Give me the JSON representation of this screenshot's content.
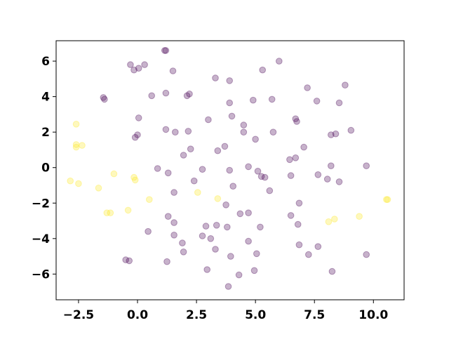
{
  "chart_data": {
    "type": "scatter",
    "title": "",
    "xlabel": "",
    "ylabel": "",
    "xlim": [
      -3.45,
      11.3
    ],
    "ylim": [
      -7.45,
      7.15
    ],
    "grid": false,
    "xticks": [
      -2.5,
      0.0,
      2.5,
      5.0,
      7.5,
      10.0
    ],
    "xtick_labels": [
      "−2.5",
      "0.0",
      "2.5",
      "5.0",
      "7.5",
      "10.0"
    ],
    "yticks": [
      -6,
      -4,
      -2,
      0,
      2,
      4,
      6
    ],
    "ytick_labels": [
      "−6",
      "−4",
      "−2",
      "0",
      "2",
      "4",
      "6"
    ],
    "colors": {
      "class_0": "#440154",
      "class_1": "#fde725"
    },
    "point_alpha": 0.3,
    "series": [
      {
        "color": "#440154",
        "points": [
          [
            1.2,
            6.6
          ],
          [
            1.15,
            6.6
          ],
          [
            6.0,
            6.0
          ],
          [
            -0.3,
            5.8
          ],
          [
            0.3,
            5.8
          ],
          [
            0.05,
            5.6
          ],
          [
            -0.15,
            5.5
          ],
          [
            1.5,
            5.45
          ],
          [
            5.3,
            5.5
          ],
          [
            3.3,
            5.05
          ],
          [
            3.9,
            4.9
          ],
          [
            8.8,
            4.65
          ],
          [
            7.2,
            4.5
          ],
          [
            1.2,
            4.2
          ],
          [
            2.2,
            4.15
          ],
          [
            2.1,
            4.05
          ],
          [
            0.6,
            4.05
          ],
          [
            -1.45,
            3.95
          ],
          [
            -1.4,
            3.85
          ],
          [
            5.7,
            3.85
          ],
          [
            4.9,
            3.8
          ],
          [
            7.6,
            3.75
          ],
          [
            8.55,
            3.65
          ],
          [
            3.9,
            3.65
          ],
          [
            4.5,
            2.4
          ],
          [
            4.0,
            2.9
          ],
          [
            0.05,
            2.8
          ],
          [
            3.0,
            2.7
          ],
          [
            6.7,
            2.75
          ],
          [
            6.75,
            2.6
          ],
          [
            1.2,
            2.15
          ],
          [
            9.05,
            2.1
          ],
          [
            2.15,
            2.05
          ],
          [
            1.6,
            2.0
          ],
          [
            4.5,
            2.0
          ],
          [
            5.75,
            2.0
          ],
          [
            8.4,
            1.9
          ],
          [
            8.2,
            1.85
          ],
          [
            0.0,
            1.85
          ],
          [
            -0.1,
            1.7
          ],
          [
            5.0,
            1.6
          ],
          [
            3.7,
            1.2
          ],
          [
            7.05,
            1.15
          ],
          [
            2.25,
            1.05
          ],
          [
            3.4,
            0.95
          ],
          [
            1.95,
            0.7
          ],
          [
            6.7,
            0.55
          ],
          [
            6.45,
            0.45
          ],
          [
            4.7,
            0.05
          ],
          [
            2.75,
            -0.1
          ],
          [
            3.9,
            -0.15
          ],
          [
            0.85,
            -0.05
          ],
          [
            5.1,
            -0.2
          ],
          [
            8.2,
            0.1
          ],
          [
            9.7,
            0.1
          ],
          [
            1.3,
            -0.3
          ],
          [
            5.25,
            -0.5
          ],
          [
            5.4,
            -0.55
          ],
          [
            6.5,
            -0.45
          ],
          [
            7.65,
            -0.4
          ],
          [
            8.05,
            -0.65
          ],
          [
            8.55,
            -0.8
          ],
          [
            2.4,
            -0.75
          ],
          [
            4.05,
            -1.05
          ],
          [
            5.6,
            -1.3
          ],
          [
            1.55,
            -1.4
          ],
          [
            6.85,
            -2.0
          ],
          [
            3.75,
            -2.1
          ],
          [
            4.7,
            -2.55
          ],
          [
            4.35,
            -2.6
          ],
          [
            6.5,
            -2.7
          ],
          [
            1.3,
            -2.75
          ],
          [
            1.55,
            -3.1
          ],
          [
            6.8,
            -3.2
          ],
          [
            2.9,
            -3.3
          ],
          [
            3.35,
            -3.25
          ],
          [
            3.8,
            -3.35
          ],
          [
            5.2,
            -3.35
          ],
          [
            0.45,
            -3.6
          ],
          [
            1.55,
            -3.8
          ],
          [
            2.75,
            -3.85
          ],
          [
            3.1,
            -4.0
          ],
          [
            4.7,
            -4.15
          ],
          [
            1.9,
            -4.25
          ],
          [
            6.85,
            -4.35
          ],
          [
            7.65,
            -4.45
          ],
          [
            3.3,
            -4.6
          ],
          [
            1.95,
            -4.75
          ],
          [
            5.05,
            -4.85
          ],
          [
            7.25,
            -4.9
          ],
          [
            9.7,
            -4.9
          ],
          [
            3.95,
            -5.0
          ],
          [
            -0.35,
            -5.25
          ],
          [
            -0.5,
            -5.2
          ],
          [
            1.25,
            -5.3
          ],
          [
            2.95,
            -5.75
          ],
          [
            4.95,
            -5.8
          ],
          [
            8.25,
            -5.85
          ],
          [
            4.3,
            -6.05
          ],
          [
            3.85,
            -6.7
          ]
        ]
      },
      {
        "color": "#fde725",
        "points": [
          [
            -2.6,
            2.45
          ],
          [
            -2.6,
            1.3
          ],
          [
            -2.6,
            1.15
          ],
          [
            -2.35,
            1.25
          ],
          [
            -2.85,
            -0.75
          ],
          [
            -2.5,
            -0.9
          ],
          [
            -1.65,
            -1.15
          ],
          [
            -1.0,
            -0.35
          ],
          [
            -0.15,
            -0.55
          ],
          [
            -0.1,
            -0.7
          ],
          [
            2.55,
            -1.4
          ],
          [
            0.5,
            -1.8
          ],
          [
            3.4,
            -1.75
          ],
          [
            -0.4,
            -2.4
          ],
          [
            -1.3,
            -2.55
          ],
          [
            -1.15,
            -2.55
          ],
          [
            8.35,
            -2.9
          ],
          [
            8.1,
            -3.05
          ],
          [
            9.4,
            -2.75
          ],
          [
            10.55,
            -1.8
          ],
          [
            10.6,
            -1.8
          ]
        ]
      }
    ]
  }
}
